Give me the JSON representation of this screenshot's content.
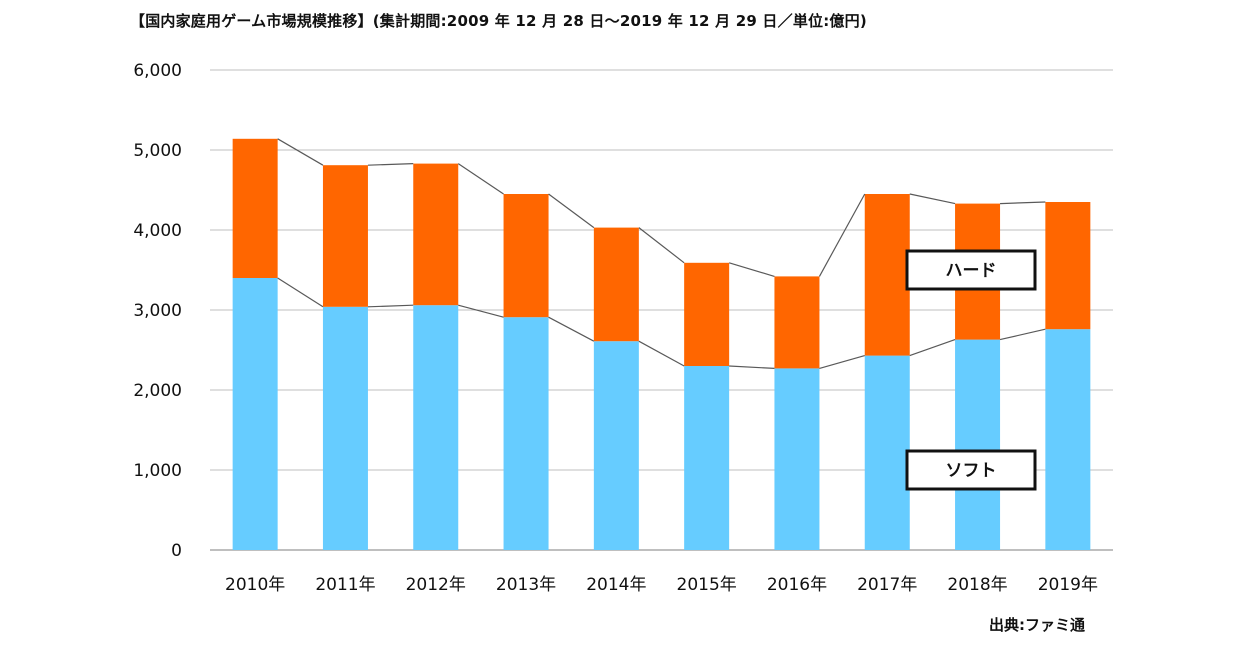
{
  "title": "【国内家庭用ゲーム市場規模推移】(集計期間:2009 年 12 月 28 日～2019 年 12 月 29 日／単位:億円)",
  "source": "出典:ファミ通",
  "colors": {
    "soft": "#66CCFF",
    "hard": "#FF6600",
    "grid": "#BFBFBF",
    "connector": "#595959",
    "axis": "#7F7F7F"
  },
  "chart_data": {
    "type": "bar",
    "stacked": true,
    "categories": [
      "2010年",
      "2011年",
      "2012年",
      "2013年",
      "2014年",
      "2015年",
      "2016年",
      "2017年",
      "2018年",
      "2019年"
    ],
    "series": [
      {
        "name": "ソフト",
        "values": [
          3400,
          3040,
          3060,
          2910,
          2610,
          2300,
          2270,
          2430,
          2630,
          2760
        ]
      },
      {
        "name": "ハード",
        "values": [
          1740,
          1770,
          1770,
          1540,
          1420,
          1290,
          1150,
          2020,
          1700,
          1590
        ]
      }
    ],
    "ylim": [
      0,
      6000
    ],
    "yticks": [
      "0",
      "1,000",
      "2,000",
      "3,000",
      "4,000",
      "5,000",
      "6,000"
    ],
    "grid": true,
    "series_line_connectors": true
  }
}
